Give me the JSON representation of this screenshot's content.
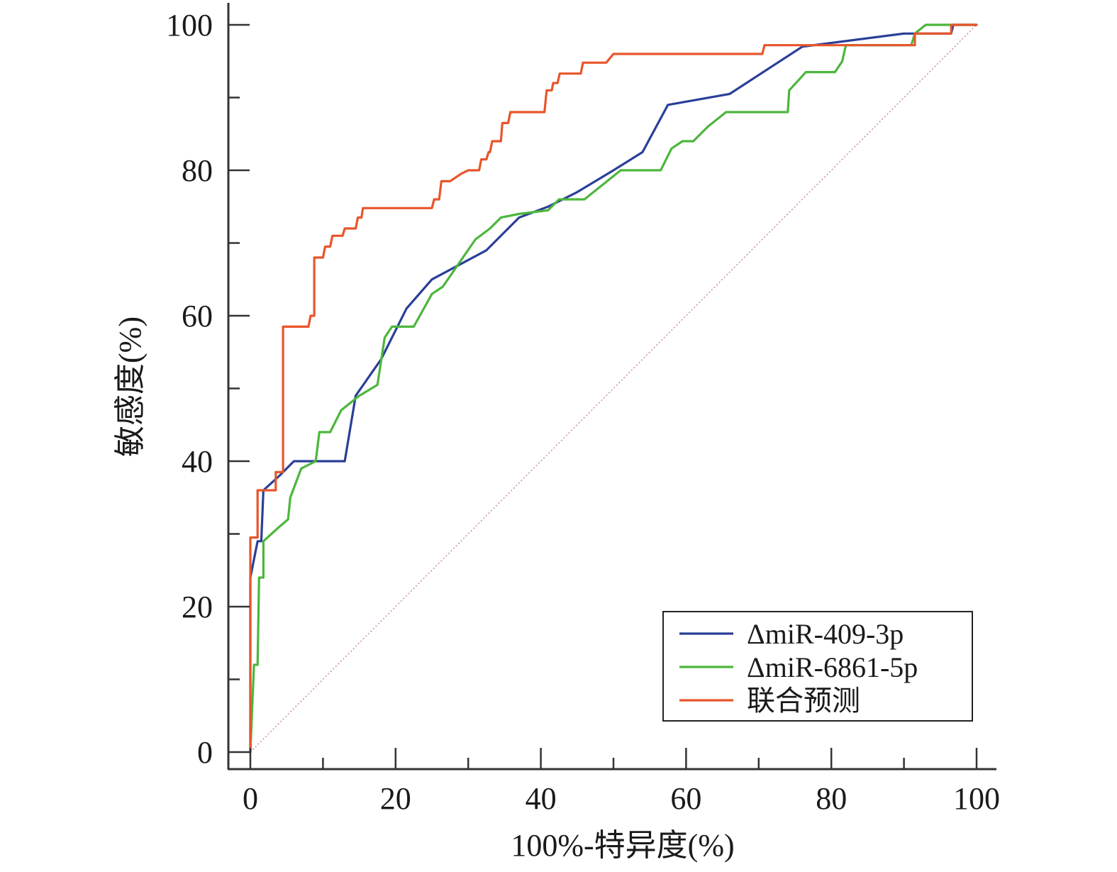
{
  "chart_data": {
    "type": "line",
    "xlabel": "100%-特异度(%)",
    "ylabel": "敏感度(%)",
    "xlim": [
      0,
      100
    ],
    "ylim": [
      0,
      100
    ],
    "x_ticks": [
      0,
      20,
      40,
      60,
      80,
      100
    ],
    "y_ticks": [
      0,
      20,
      40,
      60,
      80,
      100
    ],
    "x_tick_labels": [
      "0",
      "20",
      "40",
      "60",
      "80",
      "100"
    ],
    "y_tick_labels": [
      "0",
      "20",
      "40",
      "60",
      "80",
      "100"
    ],
    "grid": false,
    "legend_position": "bottom-right",
    "reference_line": {
      "style": "dotted-diagonal",
      "color": "#c9878f",
      "points": [
        [
          0,
          0
        ],
        [
          100,
          100
        ]
      ]
    },
    "series": [
      {
        "name": "ΔmiR-409-3p",
        "color": "#2a3f98",
        "points": [
          [
            0,
            0
          ],
          [
            0,
            24
          ],
          [
            1,
            29
          ],
          [
            1.5,
            29
          ],
          [
            1.8,
            36
          ],
          [
            4,
            38
          ],
          [
            6,
            40
          ],
          [
            13,
            40
          ],
          [
            14.5,
            49
          ],
          [
            18,
            54
          ],
          [
            21.5,
            61
          ],
          [
            25,
            65
          ],
          [
            32.5,
            69
          ],
          [
            37,
            73.5
          ],
          [
            41,
            75
          ],
          [
            45,
            77
          ],
          [
            50,
            80
          ],
          [
            54,
            82.5
          ],
          [
            57.5,
            89
          ],
          [
            66,
            90.5
          ],
          [
            76,
            97
          ],
          [
            90,
            98.8
          ],
          [
            96.5,
            98.8
          ],
          [
            96.8,
            100
          ],
          [
            100,
            100
          ]
        ]
      },
      {
        "name": "ΔmiR-6861-5p",
        "color": "#4cb63c",
        "points": [
          [
            0,
            0
          ],
          [
            0.5,
            12
          ],
          [
            1,
            12
          ],
          [
            1.2,
            24
          ],
          [
            1.8,
            24
          ],
          [
            1.8,
            29
          ],
          [
            4,
            31
          ],
          [
            5.2,
            32
          ],
          [
            5.5,
            35
          ],
          [
            7,
            39
          ],
          [
            9,
            40
          ],
          [
            9.5,
            44
          ],
          [
            11,
            44
          ],
          [
            12.5,
            47
          ],
          [
            15,
            49
          ],
          [
            17.5,
            50.5
          ],
          [
            18.5,
            57
          ],
          [
            19.5,
            58.5
          ],
          [
            22.5,
            58.5
          ],
          [
            25,
            63
          ],
          [
            26.5,
            64
          ],
          [
            31,
            70.5
          ],
          [
            33,
            72
          ],
          [
            34.5,
            73.5
          ],
          [
            37,
            74
          ],
          [
            41,
            74.5
          ],
          [
            42.5,
            76
          ],
          [
            46,
            76
          ],
          [
            51,
            80
          ],
          [
            56.5,
            80
          ],
          [
            58,
            83
          ],
          [
            59.5,
            84
          ],
          [
            61,
            84
          ],
          [
            63,
            86
          ],
          [
            65.5,
            88
          ],
          [
            74,
            88
          ],
          [
            74.2,
            91
          ],
          [
            76.5,
            93.5
          ],
          [
            80.5,
            93.5
          ],
          [
            81.5,
            95
          ],
          [
            82,
            97.2
          ],
          [
            91,
            97.2
          ],
          [
            91.5,
            98.8
          ],
          [
            93,
            100
          ],
          [
            100,
            100
          ]
        ]
      },
      {
        "name": "联合预测",
        "color": "#e8552a",
        "points": [
          [
            0,
            0
          ],
          [
            0,
            29.5
          ],
          [
            1,
            29.5
          ],
          [
            1,
            36
          ],
          [
            3.5,
            36
          ],
          [
            3.5,
            38.5
          ],
          [
            4.5,
            38.5
          ],
          [
            4.5,
            58.5
          ],
          [
            8,
            58.5
          ],
          [
            8.3,
            60
          ],
          [
            8.8,
            60
          ],
          [
            8.8,
            68
          ],
          [
            10,
            68
          ],
          [
            10.3,
            69.5
          ],
          [
            11,
            69.5
          ],
          [
            11.3,
            71
          ],
          [
            12.7,
            71
          ],
          [
            13,
            72
          ],
          [
            14.5,
            72
          ],
          [
            14.8,
            73.5
          ],
          [
            15.3,
            73.5
          ],
          [
            15.5,
            74.8
          ],
          [
            25,
            74.8
          ],
          [
            25.3,
            76
          ],
          [
            26,
            76
          ],
          [
            26.3,
            78.5
          ],
          [
            27.5,
            78.5
          ],
          [
            29,
            79.5
          ],
          [
            30,
            80
          ],
          [
            31.5,
            80
          ],
          [
            31.8,
            81.5
          ],
          [
            32.5,
            81.5
          ],
          [
            32.8,
            82.5
          ],
          [
            33,
            82.5
          ],
          [
            33.3,
            84
          ],
          [
            34.5,
            84
          ],
          [
            34.7,
            86.5
          ],
          [
            35.5,
            86.5
          ],
          [
            35.8,
            88
          ],
          [
            40.5,
            88
          ],
          [
            40.8,
            91
          ],
          [
            41.5,
            91
          ],
          [
            41.7,
            92
          ],
          [
            42.3,
            92
          ],
          [
            42.6,
            93.3
          ],
          [
            45.5,
            93.3
          ],
          [
            45.8,
            94.8
          ],
          [
            49,
            94.8
          ],
          [
            50,
            96
          ],
          [
            70.5,
            96
          ],
          [
            70.8,
            97.2
          ],
          [
            91.5,
            97.2
          ],
          [
            91.5,
            98.8
          ],
          [
            96.5,
            98.8
          ],
          [
            96.5,
            100
          ],
          [
            100,
            100
          ]
        ]
      }
    ]
  }
}
